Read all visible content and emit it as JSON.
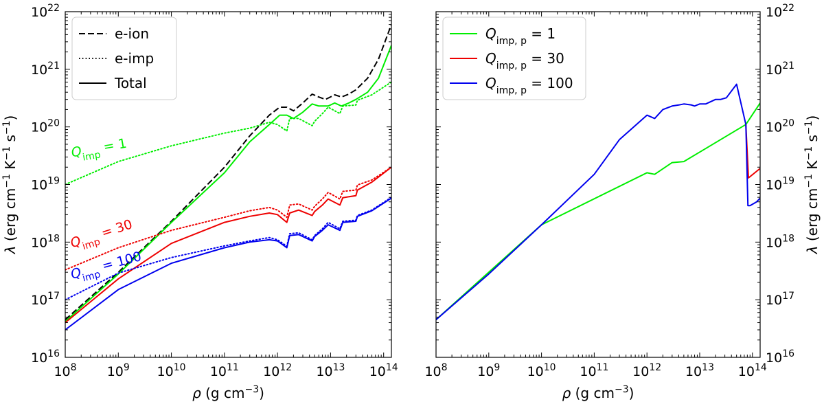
{
  "chart_data": [
    {
      "type": "line",
      "panel": "left",
      "xlabel": "ρ (g cm⁻³)",
      "ylabel": "λ (erg cm⁻¹ K⁻¹ s⁻¹)",
      "xscale": "log",
      "yscale": "log",
      "xlim": [
        100000000.0,
        140000000000000.0
      ],
      "ylim": [
        1e+16,
        1e+22
      ],
      "x_ticks": [
        "10^8",
        "10^9",
        "10^10",
        "10^11",
        "10^12",
        "10^13",
        "10^14"
      ],
      "y_ticks": [
        "10^16",
        "10^17",
        "10^18",
        "10^19",
        "10^20",
        "10^21",
        "10^22"
      ],
      "grid": false,
      "legend_position": "top-left",
      "legend": [
        {
          "label": "e-ion",
          "style": "dashed",
          "color": "#000000"
        },
        {
          "label": "e-imp",
          "style": "dotted",
          "color": "#000000"
        },
        {
          "label": "Total",
          "style": "solid",
          "color": "#000000"
        }
      ],
      "annotations": [
        {
          "sym": "Q",
          "sub": "imp",
          "rest": " = 1",
          "color": "#00ee00",
          "at": [
            100000000.0,
            3e+19
          ],
          "angle": -10
        },
        {
          "sym": "Q",
          "sub": "imp",
          "rest": " = 30",
          "color": "#ee0000",
          "at": [
            100000000.0,
            8e+17
          ],
          "angle": -18
        },
        {
          "sym": "Q",
          "sub": "imp",
          "rest": " = 100",
          "color": "#0000ee",
          "at": [
            100000000.0,
            2.3e+17
          ],
          "angle": -15
        }
      ],
      "series": [
        {
          "group": "e-ion",
          "style": "dashed",
          "color": "#000000",
          "x": [
            100000000.0,
            1000000000.0,
            10000000000.0,
            100000000000.0,
            300000000000.0,
            700000000000.0,
            1100000000000.0,
            1500000000000.0,
            2000000000000.0,
            3000000000000.0,
            4500000000000.0,
            6000000000000.0,
            8000000000000.0,
            12000000000000.0,
            16000000000000.0,
            22000000000000.0,
            30000000000000.0,
            50000000000000.0,
            80000000000000.0,
            140000000000000.0
          ],
          "y": [
            4.5e+16,
            3e+17,
            2.3e+18,
            2e+19,
            7e+19,
            1.6e+20,
            2.2e+20,
            2.2e+20,
            1.9e+20,
            2.6e+20,
            3.7e+20,
            3.3e+20,
            3e+20,
            3.6e+20,
            3.3e+20,
            3.7e+20,
            4.4e+20,
            7e+20,
            1.5e+21,
            6e+21
          ]
        },
        {
          "group": "e-imp",
          "style": "dotted",
          "color": "#00ee00",
          "x": [
            100000000.0,
            1000000000.0,
            10000000000.0,
            100000000000.0,
            300000000000.0,
            700000000000.0,
            1000000000000.0,
            1500000000000.0,
            1700000000000.0,
            2500000000000.0,
            4500000000000.0,
            5000000000000.0,
            7000000000000.0,
            9000000000000.0,
            15000000000000.0,
            17000000000000.0,
            30000000000000.0,
            32000000000000.0,
            60000000000000.0,
            140000000000000.0
          ],
          "y": [
            1e+19,
            2.5e+19,
            4.7e+19,
            7.8e+19,
            9.5e+19,
            1.2e+20,
            1.1e+20,
            8.5e+19,
            1.4e+20,
            1.4e+20,
            1.05e+20,
            1.25e+20,
            1.7e+20,
            2.2e+20,
            1.7e+20,
            2.3e+20,
            2.4e+20,
            2.9e+20,
            3.6e+20,
            6e+20
          ]
        },
        {
          "group": "Total",
          "style": "solid",
          "color": "#00ee00",
          "x": [
            100000000.0,
            1000000000.0,
            10000000000.0,
            100000000000.0,
            300000000000.0,
            700000000000.0,
            1100000000000.0,
            1500000000000.0,
            2000000000000.0,
            3000000000000.0,
            4500000000000.0,
            6000000000000.0,
            9000000000000.0,
            12000000000000.0,
            16000000000000.0,
            22000000000000.0,
            30000000000000.0,
            50000000000000.0,
            80000000000000.0,
            140000000000000.0
          ],
          "y": [
            4.2e+16,
            2.8e+17,
            2.2e+18,
            1.6e+19,
            5.5e+19,
            1.1e+20,
            1.6e+20,
            1.6e+20,
            1.4e+20,
            1.8e+20,
            2.5e+20,
            2.3e+20,
            2.3e+20,
            2.6e+20,
            2.3e+20,
            2.6e+20,
            3e+20,
            4e+20,
            7e+20,
            2.6e+21
          ]
        },
        {
          "group": "e-imp",
          "style": "dotted",
          "color": "#ee0000",
          "x": [
            100000000.0,
            1000000000.0,
            10000000000.0,
            100000000000.0,
            300000000000.0,
            700000000000.0,
            1000000000000.0,
            1500000000000.0,
            1700000000000.0,
            2500000000000.0,
            4500000000000.0,
            5000000000000.0,
            7000000000000.0,
            9000000000000.0,
            15000000000000.0,
            17000000000000.0,
            30000000000000.0,
            32000000000000.0,
            60000000000000.0,
            140000000000000.0
          ],
          "y": [
            3.3e+17,
            8e+17,
            1.6e+18,
            2.7e+18,
            3.5e+18,
            4e+18,
            3.6e+18,
            2.7e+18,
            4.4e+18,
            4.6e+18,
            3.6e+18,
            4.2e+18,
            5.6e+18,
            7.3e+18,
            5.6e+18,
            7.6e+18,
            8e+18,
            9.8e+18,
            1.2e+19,
            2e+19
          ]
        },
        {
          "group": "Total",
          "style": "solid",
          "color": "#ee0000",
          "x": [
            100000000.0,
            1000000000.0,
            10000000000.0,
            100000000000.0,
            300000000000.0,
            700000000000.0,
            1000000000000.0,
            1500000000000.0,
            1700000000000.0,
            2500000000000.0,
            4500000000000.0,
            5000000000000.0,
            7000000000000.0,
            9000000000000.0,
            15000000000000.0,
            17000000000000.0,
            30000000000000.0,
            32000000000000.0,
            60000000000000.0,
            140000000000000.0
          ],
          "y": [
            4e+16,
            2.3e+17,
            9.5e+17,
            2.2e+18,
            2.8e+18,
            3.2e+18,
            3e+18,
            2.2e+18,
            3.2e+18,
            3.6e+18,
            2.9e+18,
            3.4e+18,
            4.4e+18,
            5.6e+18,
            4.4e+18,
            5.9e+18,
            6.4e+18,
            8e+18,
            1.1e+19,
            2e+19
          ]
        },
        {
          "group": "e-imp",
          "style": "dotted",
          "color": "#0000ee",
          "x": [
            100000000.0,
            1000000000.0,
            10000000000.0,
            100000000000.0,
            300000000000.0,
            700000000000.0,
            1000000000000.0,
            1500000000000.0,
            1700000000000.0,
            2500000000000.0,
            4500000000000.0,
            5000000000000.0,
            7000000000000.0,
            9000000000000.0,
            15000000000000.0,
            17000000000000.0,
            30000000000000.0,
            32000000000000.0,
            60000000000000.0,
            140000000000000.0
          ],
          "y": [
            1e+17,
            2.9e+17,
            5.4e+17,
            8.6e+17,
            1.05e+18,
            1.2e+18,
            1.1e+18,
            8.5e+17,
            1.4e+18,
            1.45e+18,
            1.1e+18,
            1.3e+18,
            1.7e+18,
            2.2e+18,
            1.7e+18,
            2.3e+18,
            2.4e+18,
            2.9e+18,
            3.6e+18,
            6e+18
          ]
        },
        {
          "group": "Total",
          "style": "solid",
          "color": "#0000ee",
          "x": [
            100000000.0,
            1000000000.0,
            10000000000.0,
            100000000000.0,
            300000000000.0,
            700000000000.0,
            1000000000000.0,
            1500000000000.0,
            1700000000000.0,
            2500000000000.0,
            4500000000000.0,
            5000000000000.0,
            7000000000000.0,
            9000000000000.0,
            15000000000000.0,
            17000000000000.0,
            30000000000000.0,
            32000000000000.0,
            60000000000000.0,
            140000000000000.0
          ],
          "y": [
            3e+16,
            1.5e+17,
            4.3e+17,
            8e+17,
            1e+18,
            1.1e+18,
            1.05e+18,
            8e+17,
            1.3e+18,
            1.35e+18,
            1.05e+18,
            1.25e+18,
            1.6e+18,
            2e+18,
            1.6e+18,
            2.2e+18,
            2.3e+18,
            2.8e+18,
            3.5e+18,
            5.8e+18
          ]
        }
      ]
    },
    {
      "type": "line",
      "panel": "right",
      "xlabel": "ρ (g cm⁻³)",
      "ylabel": "λ (erg cm⁻¹ K⁻¹ s⁻¹)",
      "xscale": "log",
      "yscale": "log",
      "xlim": [
        100000000.0,
        140000000000000.0
      ],
      "ylim": [
        1e+16,
        1e+22
      ],
      "x_ticks": [
        "10^8",
        "10^9",
        "10^10",
        "10^11",
        "10^12",
        "10^13",
        "10^14"
      ],
      "y_ticks": [
        "10^16",
        "10^17",
        "10^18",
        "10^19",
        "10^20",
        "10^21",
        "10^22"
      ],
      "grid": false,
      "legend_position": "top-left",
      "legend": [
        {
          "sym": "Q",
          "sub": "imp, p",
          "rest": " = 1",
          "color": "#00ee00",
          "style": "solid"
        },
        {
          "sym": "Q",
          "sub": "imp, p",
          "rest": " = 30",
          "color": "#ee0000",
          "style": "solid"
        },
        {
          "sym": "Q",
          "sub": "imp, p",
          "rest": " = 100",
          "color": "#0000ee",
          "style": "solid"
        }
      ],
      "series": [
        {
          "name": "Q_imp,p = 1",
          "color": "#00ee00",
          "x": [
            100000000.0,
            10000000000.0,
            1000000000000.0,
            1400000000000.0,
            3000000000000.0,
            5000000000000.0,
            75000000000000.0,
            140000000000000.0
          ],
          "y": [
            4.5e+16,
            2e+18,
            1.6e+19,
            1.5e+19,
            2.4e+19,
            2.5e+19,
            1.1e+20,
            2.6e+20
          ]
        },
        {
          "name": "Q_imp,p = 30",
          "color": "#ee0000",
          "x": [
            75000000000000.0,
            84000000000000.0,
            140000000000000.0
          ],
          "y": [
            1.1e+20,
            1.3e+19,
            1.9e+19
          ]
        },
        {
          "name": "Q_imp,p = 100",
          "color": "#0000ee",
          "x": [
            100000000.0,
            1000000000.0,
            10000000000.0,
            100000000000.0,
            300000000000.0,
            1000000000000.0,
            1400000000000.0,
            2000000000000.0,
            3000000000000.0,
            4000000000000.0,
            5000000000000.0,
            7000000000000.0,
            8000000000000.0,
            10000000000000.0,
            13000000000000.0,
            20000000000000.0,
            25000000000000.0,
            32000000000000.0,
            50000000000000.0,
            75000000000000.0,
            82000000000000.0,
            90000000000000.0,
            120000000000000.0,
            140000000000000.0
          ],
          "y": [
            4.5e+16,
            2.8e+17,
            2e+18,
            1.5e+19,
            6e+19,
            1.6e+20,
            1.4e+20,
            2e+20,
            2.3e+20,
            2.4e+20,
            2.5e+20,
            2.4e+20,
            2.3e+20,
            2.5e+20,
            2.5e+20,
            3e+20,
            3e+20,
            3.2e+20,
            5.5e+20,
            1.1e+20,
            4.3e+18,
            4.3e+18,
            5e+18,
            5.8e+18
          ]
        }
      ]
    }
  ]
}
